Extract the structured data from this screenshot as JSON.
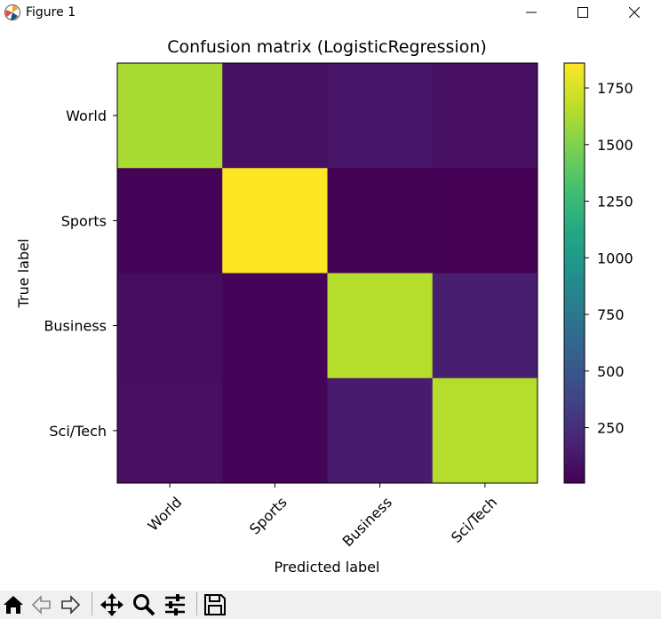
{
  "window": {
    "title": "Figure 1",
    "icons": [
      "matplotlib-icon",
      "minimize-icon",
      "maximize-icon",
      "close-icon"
    ]
  },
  "toolbar": {
    "buttons": [
      "home-icon",
      "back-icon",
      "forward-icon",
      "pan-icon",
      "zoom-icon",
      "configure-subplots-icon",
      "save-icon"
    ]
  },
  "chart_data": {
    "type": "heatmap",
    "title": "Confusion matrix (LogisticRegression)",
    "xlabel": "Predicted label",
    "ylabel": "True label",
    "x_categories": [
      "World",
      "Sports",
      "Business",
      "Sci/Tech"
    ],
    "y_categories": [
      "World",
      "Sports",
      "Business",
      "Sci/Tech"
    ],
    "values": [
      [
        1620,
        90,
        110,
        80
      ],
      [
        25,
        1860,
        10,
        5
      ],
      [
        70,
        20,
        1650,
        160
      ],
      [
        80,
        20,
        150,
        1650
      ]
    ],
    "colormap": "viridis",
    "colorbar": {
      "min": 5,
      "max": 1860,
      "ticks": [
        250,
        500,
        750,
        1000,
        1250,
        1500,
        1750
      ]
    },
    "grid": false
  }
}
